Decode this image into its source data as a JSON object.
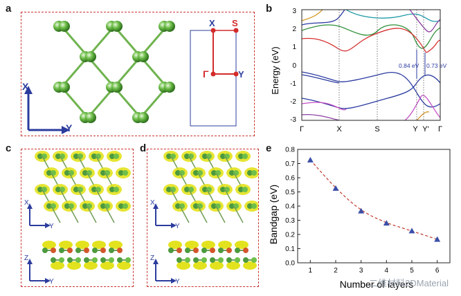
{
  "figure": {
    "panels": {
      "a": {
        "letter": "a",
        "axis_x": "X",
        "axis_y": "Y",
        "bz_labels": {
          "x": "X",
          "s": "S",
          "gamma": "Γ",
          "y": "Y"
        }
      },
      "b": {
        "letter": "b",
        "ylabel": "Energy (eV)",
        "kpoints": [
          "Γ",
          "X",
          "S",
          "Y",
          "Y'",
          "Γ"
        ],
        "gap1": "0.84 eV",
        "gap2": "0.73 eV",
        "yticks": [
          "3",
          "2",
          "1",
          "0",
          "-1",
          "-2",
          "-3"
        ]
      },
      "c": {
        "letter": "c",
        "top_x": "X",
        "top_y": "Y",
        "side_z": "Z",
        "side_y": "Y"
      },
      "d": {
        "letter": "d",
        "top_x": "X",
        "top_y": "Y",
        "side_z": "Z",
        "side_y": "Y"
      },
      "e": {
        "letter": "e"
      }
    },
    "watermark": "二维材料2DMaterial"
  },
  "chart_data": [
    {
      "type": "scatter",
      "panel": "e",
      "xlabel": "Number of layers",
      "ylabel": "Bandgap (eV)",
      "x": [
        1,
        2,
        3,
        4,
        5,
        6
      ],
      "values": [
        0.725,
        0.525,
        0.365,
        0.28,
        0.225,
        0.165
      ],
      "xlim": [
        0.5,
        6.5
      ],
      "ylim": [
        0.0,
        0.8
      ],
      "xticks": [
        "1",
        "2",
        "3",
        "4",
        "5",
        "6"
      ],
      "yticks": [
        "0.0",
        "0.1",
        "0.2",
        "0.3",
        "0.4",
        "0.5",
        "0.6",
        "0.7",
        "0.8"
      ],
      "marker_color": "#3b4fa8",
      "fit_color": "#c0392b"
    }
  ]
}
